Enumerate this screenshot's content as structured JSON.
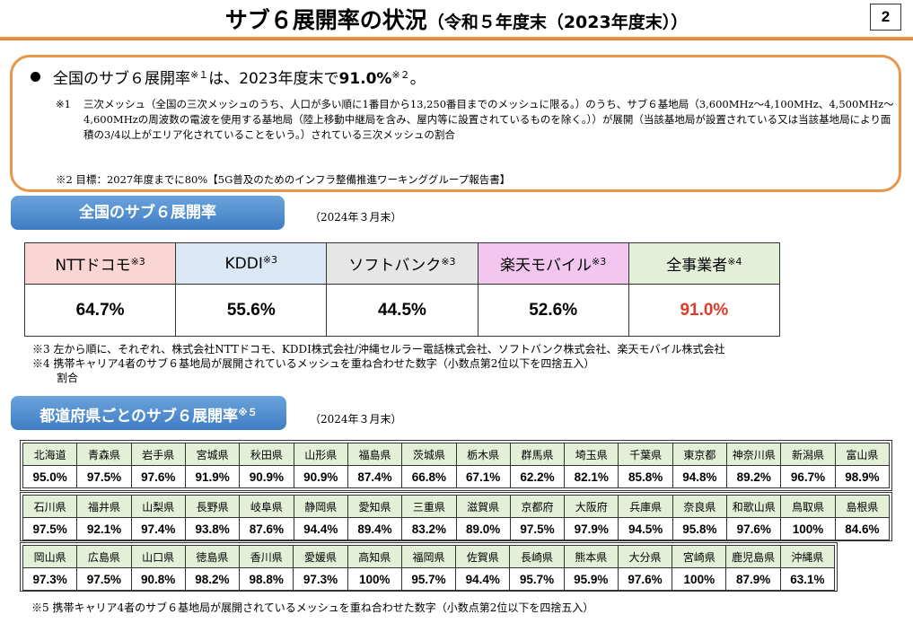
{
  "title": {
    "main": "サブ６展開率の状況",
    "sub": "（令和５年度末（2023年度末））"
  },
  "page_number": "2",
  "summary": {
    "line_pre": "全国のサブ６展開率",
    "line_sup1": "※１",
    "line_mid": "は、2023年度末で",
    "line_value": "91.0%",
    "line_sup2": "※２",
    "line_post": "。",
    "note1_mark": "※1",
    "note1_text": "三次メッシュ（全国の三次メッシュのうち、人口が多い順に1番目から13,250番目までのメッシュに限る。）のうち、サブ６基地局（3,600MHz～4,100MHz、4,500MHz～4,600MHzの周波数の電波を使用する基地局（陸上移動中継局を含み、屋内等に設置されているものを除く。））が展開（当該基地局が設置されている又は当該基地局により面積の3/4以上がエリア化されていることをいう。）されている三次メッシュの割合",
    "note2": "※2 目標：2027年度までに80%【5G普及のためのインフラ整備推進ワーキンググループ報告書】"
  },
  "national": {
    "label": "全国のサブ６展開率",
    "as_of": "（2024年３月末）",
    "carriers": [
      {
        "name": "NTTドコモ",
        "sup": "※3",
        "value": "64.7%",
        "bg": "#f9d5d3"
      },
      {
        "name": "KDDI",
        "sup": "※3",
        "value": "55.6%",
        "bg": "#dbe7f5"
      },
      {
        "name": "ソフトバンク",
        "sup": "※3",
        "value": "44.5%",
        "bg": "#e6e6e6"
      },
      {
        "name": "楽天モバイル",
        "sup": "※3",
        "value": "52.6%",
        "bg": "#f3c6f0"
      },
      {
        "name": "全事業者",
        "sup": "※4",
        "value": "91.0%",
        "bg": "#e4efd8"
      }
    ],
    "note3": "※3 左から順に、それぞれ、株式会社NTTドコモ、KDDI株式会社/沖縄セルラー電話株式会社、ソフトバンク株式会社、楽天モバイル株式会社",
    "note4a": "※4 携帯キャリア4者のサブ６基地局が展開されているメッシュを重ね合わせた数字（小数点第2位以下を四捨五入）",
    "note4b": "割合"
  },
  "prefectures": {
    "label": "都道府県ごとのサブ６展開率",
    "label_sup": "※５",
    "as_of": "（2024年３月末）",
    "rows": [
      {
        "names": [
          "北海道",
          "青森県",
          "岩手県",
          "宮城県",
          "秋田県",
          "山形県",
          "福島県",
          "茨城県",
          "栃木県",
          "群馬県",
          "埼玉県",
          "千葉県",
          "東京都",
          "神奈川県",
          "新潟県",
          "富山県"
        ],
        "values": [
          "95.0%",
          "97.5%",
          "97.6%",
          "91.9%",
          "90.9%",
          "90.9%",
          "87.4%",
          "66.8%",
          "67.1%",
          "62.2%",
          "82.1%",
          "85.8%",
          "94.8%",
          "89.2%",
          "96.7%",
          "98.9%"
        ]
      },
      {
        "names": [
          "石川県",
          "福井県",
          "山梨県",
          "長野県",
          "岐阜県",
          "静岡県",
          "愛知県",
          "三重県",
          "滋賀県",
          "京都府",
          "大阪府",
          "兵庫県",
          "奈良県",
          "和歌山県",
          "鳥取県",
          "島根県"
        ],
        "values": [
          "97.5%",
          "92.1%",
          "97.4%",
          "93.8%",
          "87.6%",
          "94.4%",
          "89.4%",
          "83.2%",
          "89.0%",
          "97.5%",
          "97.9%",
          "94.5%",
          "95.8%",
          "97.6%",
          "100%",
          "84.6%"
        ]
      },
      {
        "names": [
          "岡山県",
          "広島県",
          "山口県",
          "徳島県",
          "香川県",
          "愛媛県",
          "高知県",
          "福岡県",
          "佐賀県",
          "長崎県",
          "熊本県",
          "大分県",
          "宮崎県",
          "鹿児島県",
          "沖縄県"
        ],
        "values": [
          "97.3%",
          "97.5%",
          "90.8%",
          "98.2%",
          "98.8%",
          "97.3%",
          "100%",
          "95.7%",
          "94.4%",
          "95.7%",
          "95.9%",
          "97.6%",
          "100%",
          "87.9%",
          "63.1%"
        ]
      }
    ],
    "note5": "※5 携帯キャリア4者のサブ６基地局が展開されているメッシュを重ね合わせた数字（小数点第2位以下を四捨五入）"
  }
}
